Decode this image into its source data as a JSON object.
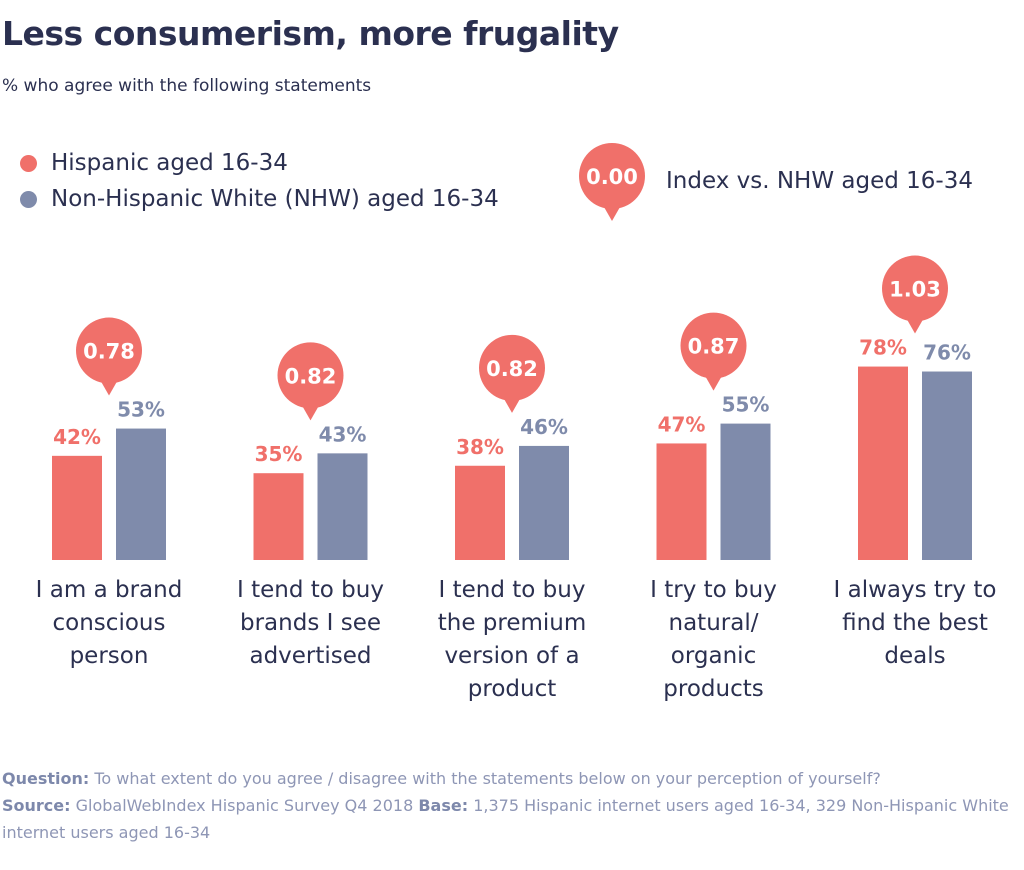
{
  "title": "Less consumerism, more frugality",
  "subtitle": "% who agree with the following statements",
  "legend": {
    "series": [
      {
        "label": "Hispanic aged 16-34",
        "color": "#f0706a"
      },
      {
        "label": "Non-Hispanic White (NHW) aged 16-34",
        "color": "#7f8bab"
      }
    ],
    "index_badge": "0.00",
    "index_label": "Index vs. NHW aged 16-34"
  },
  "footer": {
    "question_label": "Question:",
    "question_text": "To what extent do you agree / disagree with the statements below on your perception of yourself?",
    "source_label": "Source:",
    "source_text": "GlobalWebIndex Hispanic Survey Q4 2018",
    "base_label": "Base:",
    "base_text": "1,375 Hispanic internet users aged 16-34, 329 Non-Hispanic White internet users aged 16-34"
  },
  "chart_data": {
    "type": "bar",
    "title": "Less consumerism, more frugality",
    "subtitle": "% who agree with the following statements",
    "categories": [
      [
        "I am a brand",
        "conscious",
        "person"
      ],
      [
        "I tend to buy",
        "brands I see",
        "advertised"
      ],
      [
        "I tend to buy",
        "the premium",
        "version of a",
        "product"
      ],
      [
        "I try to buy",
        "natural/",
        "organic",
        "products"
      ],
      [
        "I always try to",
        "find the best",
        "deals"
      ]
    ],
    "series": [
      {
        "name": "Hispanic aged 16-34",
        "values": [
          42,
          35,
          38,
          47,
          78
        ],
        "labels": [
          "42%",
          "35%",
          "38%",
          "47%",
          "78%"
        ]
      },
      {
        "name": "Non-Hispanic White (NHW) aged 16-34",
        "values": [
          53,
          43,
          46,
          55,
          76
        ],
        "labels": [
          "53%",
          "43%",
          "46%",
          "55%",
          "76%"
        ]
      }
    ],
    "index": {
      "name": "Index vs. NHW aged 16-34",
      "values": [
        "0.78",
        "0.82",
        "0.82",
        "0.87",
        "1.03"
      ]
    },
    "unit": "%",
    "grid": false,
    "legend_position": "top-left"
  }
}
